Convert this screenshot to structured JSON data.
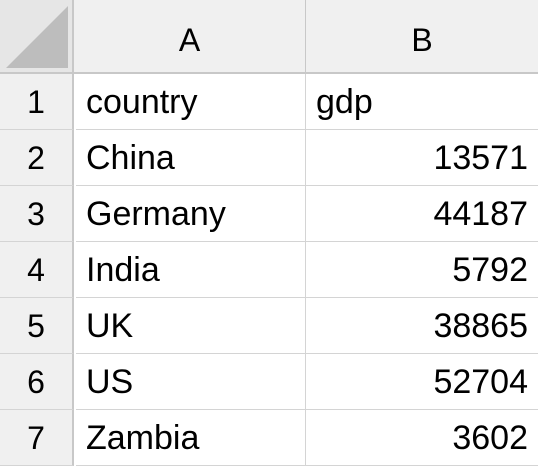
{
  "columns": [
    "A",
    "B"
  ],
  "rows": [
    {
      "num": "1",
      "a": "country",
      "b": "gdp"
    },
    {
      "num": "2",
      "a": "China",
      "b": "13571"
    },
    {
      "num": "3",
      "a": "Germany",
      "b": "44187"
    },
    {
      "num": "4",
      "a": "India",
      "b": "5792"
    },
    {
      "num": "5",
      "a": "UK",
      "b": "38865"
    },
    {
      "num": "6",
      "a": "US",
      "b": "52704"
    },
    {
      "num": "7",
      "a": "Zambia",
      "b": "3602"
    }
  ]
}
